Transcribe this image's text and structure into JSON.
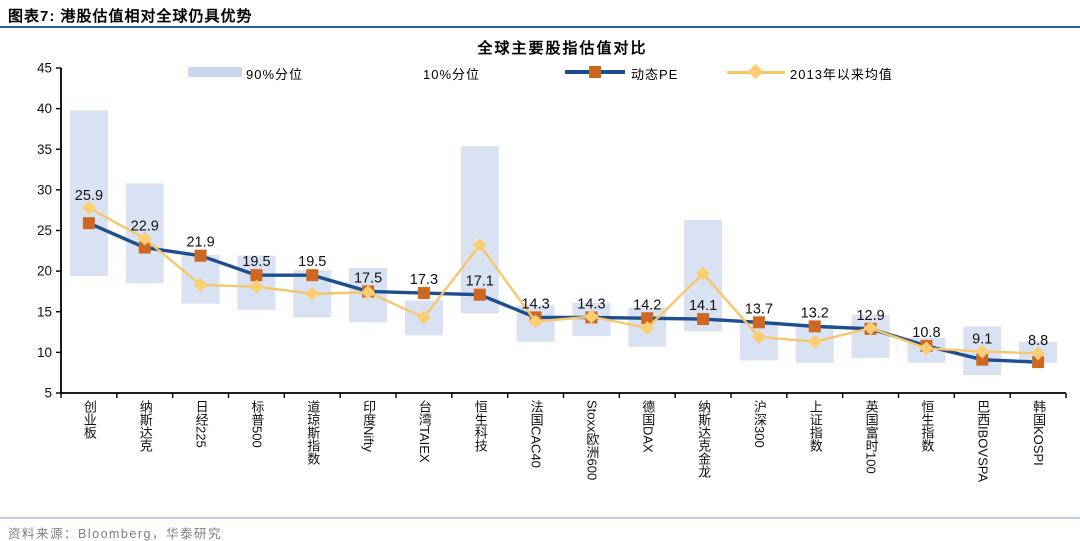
{
  "header": {
    "title": "图表7:  港股估值相对全球仍具优势"
  },
  "footer": {
    "source": "资料来源：Bloomberg，华泰研究"
  },
  "chart_data": {
    "type": "line",
    "title": "全球主要股指估值对比",
    "ylim": [
      5,
      45
    ],
    "yticks": [
      5,
      10,
      15,
      20,
      25,
      30,
      35,
      40,
      45
    ],
    "grid": false,
    "legend_position": "top",
    "legend": [
      "90%分位",
      "10%分位",
      "动态PE",
      "2013年以来均值"
    ],
    "colors": {
      "band": "#D9E2F3",
      "legend_band_swatch": "#C9D7ED",
      "pe_line": "#1F4E8C",
      "pe_marker": "#CD6722",
      "mean_line": "#F7C66A",
      "mean_marker": "#FBCE74",
      "axis": "#000000",
      "header_rule": "#2E5B9E",
      "footer_rule": "#BFCFE4"
    },
    "categories": [
      "创业板",
      "纳斯达克",
      "日经225",
      "标普500",
      "道琼斯指数",
      "印度Nifty",
      "台湾TAIEX",
      "恒生科技",
      "法国CAC40",
      "Stoxx欧洲600",
      "德国DAX",
      "纳斯达克金龙",
      "沪深300",
      "上证指数",
      "英国富时100",
      "恒生指数",
      "巴西IBOVSPA",
      "韩国KOSPI"
    ],
    "series": [
      {
        "name": "90%分位",
        "type": "band-top",
        "values": [
          39.8,
          30.8,
          22.0,
          21.9,
          20.1,
          20.4,
          16.4,
          35.4,
          15.8,
          16.1,
          15.5,
          26.3,
          13.8,
          13.4,
          14.6,
          11.8,
          13.2,
          11.3
        ]
      },
      {
        "name": "10%分位",
        "type": "band-bottom",
        "values": [
          19.4,
          18.5,
          16.0,
          15.2,
          14.3,
          13.7,
          12.1,
          14.8,
          11.3,
          12.0,
          10.7,
          12.6,
          9.0,
          8.7,
          9.3,
          8.7,
          7.2,
          8.7
        ]
      },
      {
        "name": "动态PE",
        "type": "line",
        "marker": "square",
        "labeled": true,
        "values": [
          25.9,
          22.9,
          21.9,
          19.5,
          19.5,
          17.5,
          17.3,
          17.1,
          14.3,
          14.3,
          14.2,
          14.1,
          13.7,
          13.2,
          12.9,
          10.8,
          9.1,
          8.8
        ]
      },
      {
        "name": "2013年以来均值",
        "type": "line",
        "marker": "diamond",
        "labeled": false,
        "values": [
          27.8,
          24.0,
          18.3,
          18.1,
          17.2,
          17.4,
          14.3,
          23.2,
          13.8,
          14.4,
          13.0,
          19.7,
          11.9,
          11.3,
          13.0,
          10.5,
          10.1,
          9.9
        ]
      }
    ]
  }
}
